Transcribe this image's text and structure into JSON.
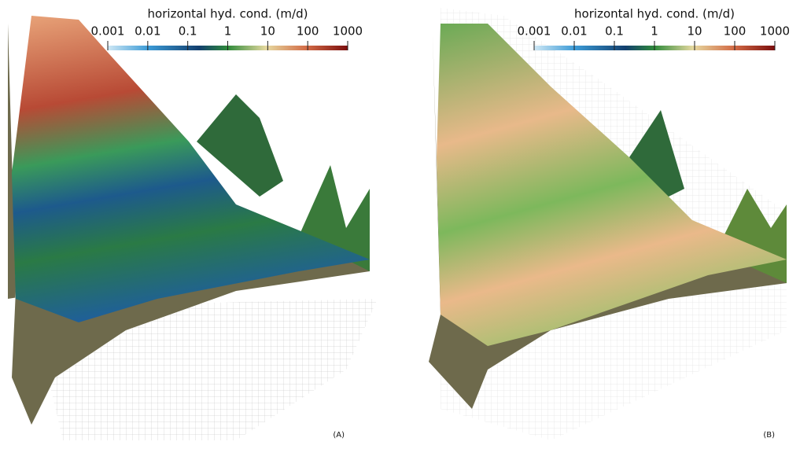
{
  "panels": [
    {
      "label": "(A)",
      "colorbar": {
        "title": "horizontal hyd. cond. (m/d)",
        "range": [
          0.001,
          1000
        ],
        "log": true,
        "ticks": [
          0.001,
          0.01,
          0.1,
          1,
          10,
          100,
          1000
        ]
      }
    },
    {
      "label": "(B)",
      "colorbar": {
        "title": "horizontal hyd. cond. (m/d)",
        "range": [
          0.001,
          1000
        ],
        "log": true,
        "ticks": [
          0.001,
          0.01,
          0.1,
          1,
          10,
          100,
          1000
        ]
      }
    }
  ]
}
